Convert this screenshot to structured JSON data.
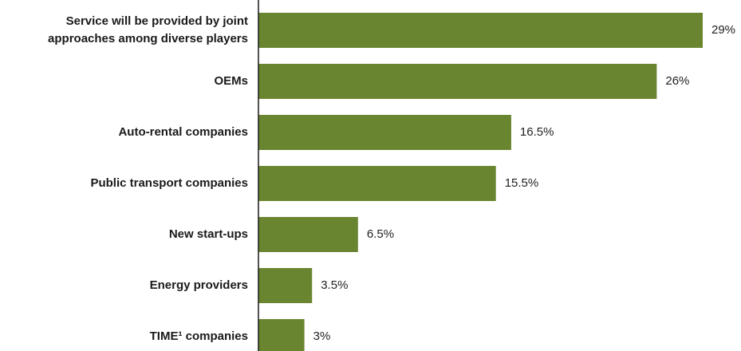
{
  "chart_data": {
    "type": "bar",
    "orientation": "horizontal",
    "title": "",
    "xlabel": "",
    "ylabel": "",
    "categories": [
      [
        "Service will be provided by joint",
        "approaches among diverse players"
      ],
      [
        "OEMs"
      ],
      [
        "Auto-rental companies"
      ],
      [
        "Public transport companies"
      ],
      [
        "New start-ups"
      ],
      [
        "Energy providers"
      ],
      [
        "TIME¹ companies"
      ]
    ],
    "values": [
      29,
      26,
      16.5,
      15.5,
      6.5,
      3.5,
      3
    ],
    "value_labels": [
      "29%",
      "26%",
      "16.5%",
      "15.5%",
      "6.5%",
      "3.5%",
      "3%"
    ],
    "unit": "%",
    "xlim": [
      0,
      29
    ],
    "grid": false,
    "legend": "none",
    "bar_color": "#6a8530",
    "axis_color": "#1a1a1a"
  }
}
